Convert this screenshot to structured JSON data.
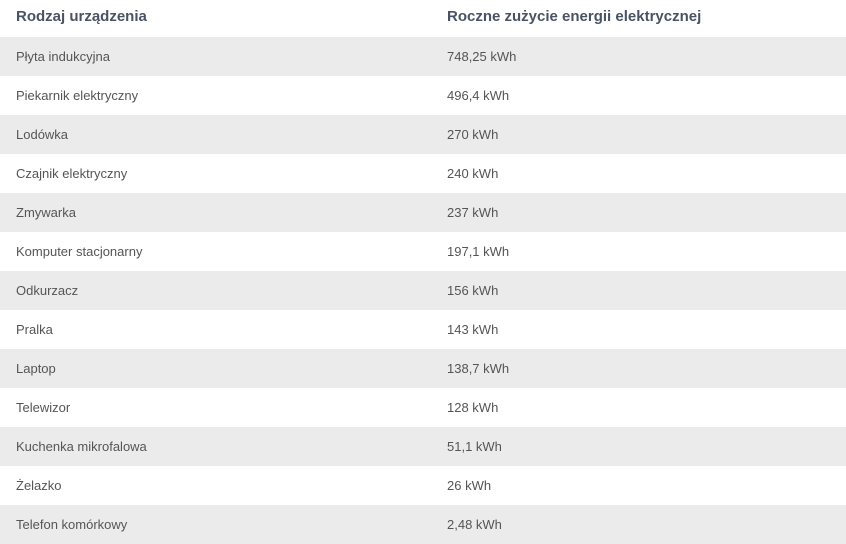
{
  "table": {
    "headers": [
      "Rodzaj urządzenia",
      "Roczne zużycie energii elektrycznej"
    ],
    "rows": [
      [
        "Płyta indukcyjna",
        "748,25 kWh"
      ],
      [
        "Piekarnik elektryczny",
        "496,4 kWh"
      ],
      [
        "Lodówka",
        "270 kWh"
      ],
      [
        "Czajnik elektryczny",
        "240 kWh"
      ],
      [
        "Zmywarka",
        "237 kWh"
      ],
      [
        "Komputer stacjonarny",
        "197,1 kWh"
      ],
      [
        "Odkurzacz",
        "156 kWh"
      ],
      [
        "Pralka",
        "143 kWh"
      ],
      [
        "Laptop",
        "138,7 kWh"
      ],
      [
        "Telewizor",
        "128 kWh"
      ],
      [
        "Kuchenka mikrofalowa",
        "51,1 kWh"
      ],
      [
        "Żelazko",
        "26 kWh"
      ],
      [
        "Telefon komórkowy",
        "2,48 kWh"
      ]
    ]
  }
}
